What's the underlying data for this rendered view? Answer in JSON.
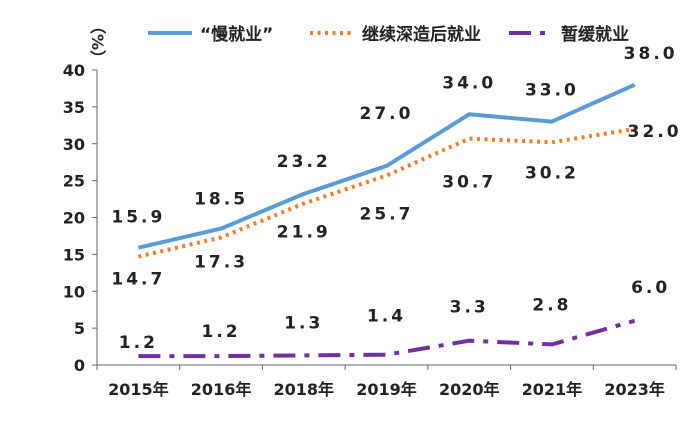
{
  "chart_data": {
    "type": "line",
    "title": "",
    "ylabel": "（%）",
    "xlabel": "",
    "categories": [
      "2015年",
      "2016年",
      "2018年",
      "2019年",
      "2020年",
      "2021年",
      "2023年"
    ],
    "ylim": [
      0,
      40
    ],
    "yticks": [
      0,
      5,
      10,
      15,
      20,
      25,
      30,
      35,
      40
    ],
    "grid": false,
    "legend_position": "top",
    "series": [
      {
        "name": "“慢就业”",
        "values": [
          15.9,
          18.5,
          23.2,
          27.0,
          34.0,
          33.0,
          38.0
        ],
        "labels": [
          "15.9",
          "18.5",
          "23.2",
          "27.0",
          "34.0",
          "33.0",
          "38.0"
        ],
        "color": "#5B9BD5",
        "style": "solid"
      },
      {
        "name": "继续深造后就业",
        "values": [
          14.7,
          17.3,
          21.9,
          25.7,
          30.7,
          30.2,
          32.0
        ],
        "labels": [
          "14.7",
          "17.3",
          "21.9",
          "25.7",
          "30.7",
          "30.2",
          "32.0"
        ],
        "color": "#ED7D31",
        "style": "dotted"
      },
      {
        "name": "暂缓就业",
        "values": [
          1.2,
          1.2,
          1.3,
          1.4,
          3.3,
          2.8,
          6.0
        ],
        "labels": [
          "1.2",
          "1.2",
          "1.3",
          "1.4",
          "3.3",
          "2.8",
          "6.0"
        ],
        "color": "#7030A0",
        "style": "dashdot"
      }
    ]
  }
}
